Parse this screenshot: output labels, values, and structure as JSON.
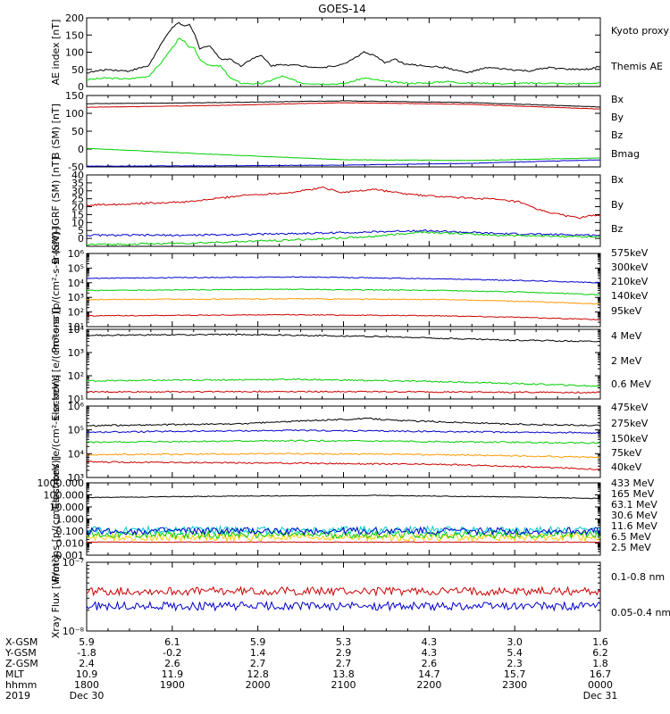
{
  "title": "GOES-14",
  "chart_data": [
    {
      "type": "line",
      "id": "ae",
      "ylabel": "AE index [nT]",
      "ylim": [
        0,
        200
      ],
      "yscale": "linear",
      "yticks": [
        0,
        50,
        100,
        150,
        200
      ],
      "legend_placement": "right",
      "series": [
        {
          "name": "Kyoto proxy AE",
          "color": "#00dd00",
          "x": [
            0,
            4,
            8,
            12,
            14,
            16,
            18,
            19,
            20,
            21,
            22,
            24,
            26,
            28,
            30,
            34,
            38,
            42,
            46,
            50,
            54,
            58,
            62,
            66,
            70,
            74,
            78,
            82,
            86,
            90,
            94,
            98,
            100
          ],
          "values": [
            20,
            25,
            22,
            30,
            60,
            100,
            140,
            130,
            115,
            110,
            80,
            60,
            60,
            25,
            10,
            8,
            30,
            10,
            8,
            8,
            25,
            15,
            10,
            10,
            15,
            10,
            10,
            8,
            10,
            10,
            8,
            10,
            10
          ]
        },
        {
          "name": "Themis AE",
          "color": "#000000",
          "x": [
            0,
            4,
            8,
            12,
            14,
            16,
            17,
            18,
            19,
            20,
            21,
            22,
            24,
            26,
            28,
            30,
            32,
            34,
            36,
            38,
            42,
            46,
            50,
            54,
            56,
            58,
            60,
            62,
            66,
            70,
            74,
            78,
            82,
            86,
            90,
            94,
            98,
            100
          ],
          "values": [
            40,
            50,
            45,
            60,
            110,
            160,
            175,
            185,
            175,
            180,
            155,
            110,
            120,
            80,
            80,
            60,
            80,
            90,
            60,
            65,
            60,
            55,
            65,
            100,
            90,
            70,
            80,
            65,
            60,
            55,
            40,
            55,
            50,
            45,
            55,
            50,
            50,
            60
          ]
        }
      ]
    },
    {
      "type": "line",
      "id": "bsm",
      "ylabel": "B (SM) [nT]",
      "ylim": [
        -50,
        150
      ],
      "yscale": "linear",
      "yticks": [
        -50,
        0,
        50,
        100,
        150
      ],
      "legend_placement": "right",
      "series": [
        {
          "name": "Bx",
          "color": "#0000cc",
          "x": [
            0,
            25,
            50,
            75,
            100
          ],
          "values": [
            -48,
            -47,
            -45,
            -40,
            -30
          ]
        },
        {
          "name": "By",
          "color": "#00cc00",
          "x": [
            0,
            25,
            50,
            75,
            100
          ],
          "values": [
            2,
            -15,
            -30,
            -32,
            -25
          ]
        },
        {
          "name": "Bz",
          "color": "#cc0000",
          "x": [
            0,
            25,
            50,
            75,
            100
          ],
          "values": [
            117,
            122,
            130,
            125,
            112
          ]
        },
        {
          "name": "Bmag",
          "color": "#000000",
          "x": [
            0,
            25,
            50,
            75,
            100
          ],
          "values": [
            127,
            130,
            135,
            130,
            118
          ]
        }
      ]
    },
    {
      "type": "line",
      "id": "bigrf",
      "ylabel": "B (SM)-IGRF (SM) [nT]",
      "ylim": [
        -5,
        40
      ],
      "yscale": "linear",
      "yticks": [
        0,
        5,
        10,
        15,
        20,
        25,
        30,
        35,
        40
      ],
      "legend_placement": "right",
      "series": [
        {
          "name": "Bx",
          "color": "#0000cc",
          "x": [
            0,
            20,
            40,
            55,
            65,
            80,
            100
          ],
          "values": [
            2,
            2,
            3,
            4,
            5,
            3,
            2
          ]
        },
        {
          "name": "By",
          "color": "#00cc00",
          "x": [
            0,
            20,
            40,
            55,
            65,
            80,
            100
          ],
          "values": [
            -4,
            -3,
            -1,
            1,
            4,
            2,
            1
          ]
        },
        {
          "name": "Bz",
          "color": "#cc0000",
          "x": [
            0,
            10,
            20,
            30,
            40,
            46,
            50,
            56,
            62,
            70,
            78,
            84,
            88,
            92,
            96,
            100
          ],
          "values": [
            21,
            22,
            23,
            27,
            29,
            32,
            29,
            31,
            28,
            26,
            25,
            23,
            18,
            15,
            13,
            15
          ]
        }
      ]
    },
    {
      "type": "line",
      "id": "protons",
      "ylabel": "Protons [p/(cm²-s-sr-keV)]",
      "ylim": [
        10,
        1000000
      ],
      "yscale": "log",
      "yticks": [
        10,
        100,
        1000,
        10000,
        100000,
        1000000
      ],
      "legend_placement": "right",
      "series": [
        {
          "name": "575keV",
          "color": "#cc0000",
          "x": [
            0,
            100
          ],
          "values": [
            0,
            0
          ]
        },
        {
          "name": "300keV",
          "color": "#ff9900",
          "x": [
            0,
            40,
            70,
            100
          ],
          "values": [
            700,
            800,
            700,
            350
          ]
        },
        {
          "name": "210keV",
          "color": "#00cc00",
          "x": [
            0,
            40,
            70,
            100
          ],
          "values": [
            3000,
            3500,
            3000,
            1500
          ]
        },
        {
          "name": "140keV",
          "color": "#0000cc",
          "x": [
            0,
            40,
            70,
            100
          ],
          "values": [
            20000,
            25000,
            18000,
            10000
          ]
        },
        {
          "name": "95keV",
          "color": "#cc0000",
          "x": [
            0,
            40,
            70,
            100
          ],
          "values": [
            55,
            65,
            55,
            30
          ]
        }
      ]
    },
    {
      "type": "line",
      "id": "electrons_mev",
      "ylabel": "Electrons [e/(cm²-s-sr)]",
      "ylim": [
        10,
        10000
      ],
      "yscale": "log",
      "yticks": [
        10,
        100,
        1000,
        10000
      ],
      "legend_placement": "right",
      "series": [
        {
          "name": "4 MeV",
          "color": "#cc0000",
          "x": [
            0,
            100
          ],
          "values": [
            0,
            0
          ]
        },
        {
          "name": "2 MeV",
          "color": "#00cc00",
          "x": [
            0,
            40,
            70,
            100
          ],
          "values": [
            60,
            70,
            55,
            35
          ]
        },
        {
          "name": "0.6 MeV",
          "color": "#000000",
          "x": [
            0,
            30,
            55,
            80,
            100
          ],
          "values": [
            5500,
            6000,
            5000,
            3500,
            3000
          ]
        },
        {
          "name": "",
          "color": "#cc0000",
          "x": [
            0,
            40,
            70,
            100
          ],
          "values": [
            20,
            21,
            20,
            19
          ]
        }
      ]
    },
    {
      "type": "line",
      "id": "electrons_kev",
      "ylabel": "Electrons [e/(cm²-s-sr-keV)]",
      "ylim": [
        1000,
        1000000
      ],
      "yscale": "log",
      "yticks": [
        1000,
        10000,
        100000,
        1000000
      ],
      "legend_placement": "right",
      "series": [
        {
          "name": "475keV",
          "color": "#cc0000",
          "x": [
            0,
            100
          ],
          "values": [
            0,
            0
          ]
        },
        {
          "name": "275keV",
          "color": "#ff9900",
          "x": [
            0,
            40,
            70,
            100
          ],
          "values": [
            9000,
            10000,
            9000,
            7000
          ]
        },
        {
          "name": "150keV",
          "color": "#00cc00",
          "x": [
            0,
            40,
            70,
            100
          ],
          "values": [
            30000,
            35000,
            32000,
            28000
          ]
        },
        {
          "name": "75keV",
          "color": "#0000cc",
          "x": [
            0,
            40,
            70,
            100
          ],
          "values": [
            80000,
            95000,
            85000,
            75000
          ]
        },
        {
          "name": "40keV",
          "color": "#cc0000",
          "x": [
            0,
            40,
            70,
            100
          ],
          "values": [
            4500,
            4000,
            3500,
            2200
          ]
        },
        {
          "name": "",
          "color": "#000000",
          "x": [
            0,
            30,
            55,
            60,
            80,
            100
          ],
          "values": [
            150000,
            180000,
            300000,
            250000,
            180000,
            150000
          ]
        }
      ]
    },
    {
      "type": "line",
      "id": "protons_mev",
      "ylabel": "Protons [p/(cm²-s-sr-keV)]",
      "ylim": [
        0.001,
        1000
      ],
      "yscale": "log",
      "yticks": [
        0.001,
        0.01,
        0.1,
        1,
        10,
        100,
        1000
      ],
      "ytick_labels": [
        "0.001",
        "0.010",
        "0.100",
        "1.000",
        "10.000",
        "100.000",
        "1000.000"
      ],
      "legend_placement": "right",
      "series": [
        {
          "name": "433 MeV",
          "color": "#cc0000",
          "x": [
            0,
            100
          ],
          "values": [
            0,
            0
          ]
        },
        {
          "name": "165 MeV",
          "color": "#ff6600",
          "x": [
            0,
            100
          ],
          "values": [
            0,
            0
          ]
        },
        {
          "name": "63.1 MeV",
          "color": "#ffcc00",
          "x": [
            0,
            100
          ],
          "values": [
            0.03,
            0.03
          ]
        },
        {
          "name": "30.6 MeV",
          "color": "#00cc00",
          "x": [
            0,
            100
          ],
          "values": [
            0.05,
            0.05
          ]
        },
        {
          "name": "11.6 MeV",
          "color": "#00cccc",
          "x": [
            0,
            100
          ],
          "values": [
            0.12,
            0.12
          ]
        },
        {
          "name": "6.5 MeV",
          "color": "#0000cc",
          "x": [
            0,
            100
          ],
          "values": [
            0.1,
            0.1
          ]
        },
        {
          "name": "2.5 MeV",
          "color": "#000000",
          "x": [
            0,
            30,
            55,
            80,
            100
          ],
          "values": [
            60,
            80,
            90,
            70,
            50
          ]
        },
        {
          "name": "",
          "color": "#cc0000",
          "x": [
            0,
            100
          ],
          "values": [
            0.012,
            0.012
          ]
        }
      ]
    },
    {
      "type": "line",
      "id": "xray",
      "ylabel": "Xray Flux [W/m²]",
      "ylim": [
        1e-08,
        1e-07
      ],
      "yscale": "log",
      "yticks": [
        1e-08,
        1e-07
      ],
      "legend_placement": "right",
      "series": [
        {
          "name": "0.1-0.8 nm",
          "color": "#cc0000",
          "x": [
            0,
            100
          ],
          "values": [
            3.8e-08,
            3.8e-08
          ]
        },
        {
          "name": "0.05-0.4 nm",
          "color": "#0000cc",
          "x": [
            0,
            100
          ],
          "values": [
            2.3e-08,
            2.3e-08
          ]
        }
      ]
    }
  ],
  "xaxis": {
    "labels": [
      "X-GSM",
      "Y-GSM",
      "Z-GSM",
      "MLT",
      "hhmm",
      "2019"
    ],
    "columns": [
      {
        "x": 0,
        "vals": [
          "5.9",
          "-1.8",
          "2.4",
          "10.9",
          "1800",
          "Dec 30"
        ]
      },
      {
        "x": 16.667,
        "vals": [
          "6.1",
          "-0.2",
          "2.6",
          "11.9",
          "1900",
          ""
        ]
      },
      {
        "x": 33.333,
        "vals": [
          "5.9",
          "1.4",
          "2.7",
          "12.8",
          "2000",
          ""
        ]
      },
      {
        "x": 50,
        "vals": [
          "5.3",
          "2.9",
          "2.7",
          "13.8",
          "2100",
          ""
        ]
      },
      {
        "x": 66.667,
        "vals": [
          "4.3",
          "4.3",
          "2.6",
          "14.7",
          "2200",
          ""
        ]
      },
      {
        "x": 83.333,
        "vals": [
          "3.0",
          "5.4",
          "2.3",
          "15.7",
          "2300",
          ""
        ]
      },
      {
        "x": 100,
        "vals": [
          "1.6",
          "6.2",
          "1.8",
          "16.7",
          "0000",
          "Dec 31"
        ]
      }
    ]
  }
}
